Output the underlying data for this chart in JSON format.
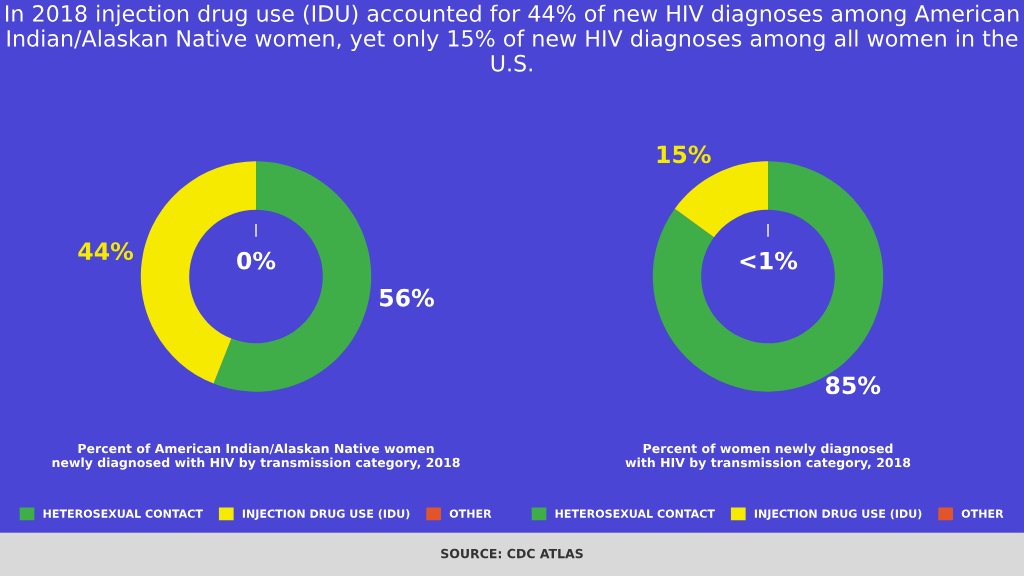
{
  "chart_data": [
    {
      "type": "donut",
      "title": "In 2018 injection drug use (IDU) accounted for 44% of new HIV diagnoses among American Indian/Alaskan Native women, yet only 15% of new HIV diagnoses among all women in the U.S.",
      "subtitle": "Percent of American Indian/Alaskan Native women\nnewly diagnosed with HIV by transmission category, 2018",
      "categories": [
        "HETEROSEXUAL CONTACT",
        "INJECTION DRUG USE (IDU)",
        "OTHER"
      ],
      "values": [
        56,
        44,
        0
      ],
      "colors": [
        "#3fae49",
        "#f5ea00",
        "#e2552b"
      ],
      "value_labels": [
        "56%",
        "44%",
        "0%"
      ],
      "legend": "bottom"
    },
    {
      "type": "donut",
      "subtitle": "Percent of women newly diagnosed\nwith HIV by transmission category, 2018",
      "categories": [
        "HETEROSEXUAL CONTACT",
        "INJECTION DRUG USE (IDU)",
        "OTHER"
      ],
      "values": [
        85,
        15,
        0
      ],
      "colors": [
        "#3fae49",
        "#f5ea00",
        "#e2552b"
      ],
      "value_labels": [
        "85%",
        "15%",
        "<1%"
      ],
      "legend": "bottom",
      "annotations": [
        "SOURCE: CDC ATLAS"
      ]
    }
  ]
}
